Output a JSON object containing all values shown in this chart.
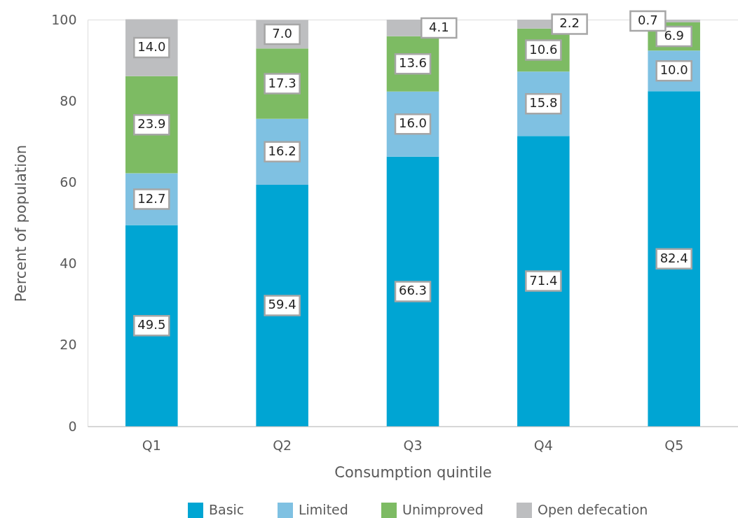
{
  "chart_data": {
    "type": "bar",
    "stacked": true,
    "xlabel": "Consumption quintile",
    "ylabel": "Percent of population",
    "categories": [
      "Q1",
      "Q2",
      "Q3",
      "Q4",
      "Q5"
    ],
    "series": [
      {
        "name": "Basic",
        "color": "#00a5d3",
        "values": [
          49.5,
          59.4,
          66.3,
          71.4,
          82.4
        ],
        "value_labels": [
          "49.5",
          "59.4",
          "66.3",
          "71.4",
          "82.4"
        ]
      },
      {
        "name": "Limited",
        "color": "#7fc1e2",
        "values": [
          12.7,
          16.2,
          16.0,
          15.8,
          10.0
        ],
        "value_labels": [
          "12.7",
          "16.2",
          "16.0",
          "15.8",
          "10.0"
        ]
      },
      {
        "name": "Unimproved",
        "color": "#7dbb63",
        "values": [
          23.9,
          17.3,
          13.6,
          10.6,
          6.9
        ],
        "value_labels": [
          "23.9",
          "17.3",
          "13.6",
          "10.6",
          "6.9"
        ]
      },
      {
        "name": "Open defecation",
        "color": "#bdbec0",
        "values": [
          14.0,
          7.0,
          4.1,
          2.2,
          0.7
        ],
        "value_labels": [
          "14.0",
          "7.0",
          "4.1",
          "2.2",
          "0.7"
        ]
      }
    ],
    "ylim": [
      0,
      100
    ],
    "yticks": [
      0,
      20,
      40,
      60,
      80,
      100
    ],
    "legend": "bottom"
  }
}
